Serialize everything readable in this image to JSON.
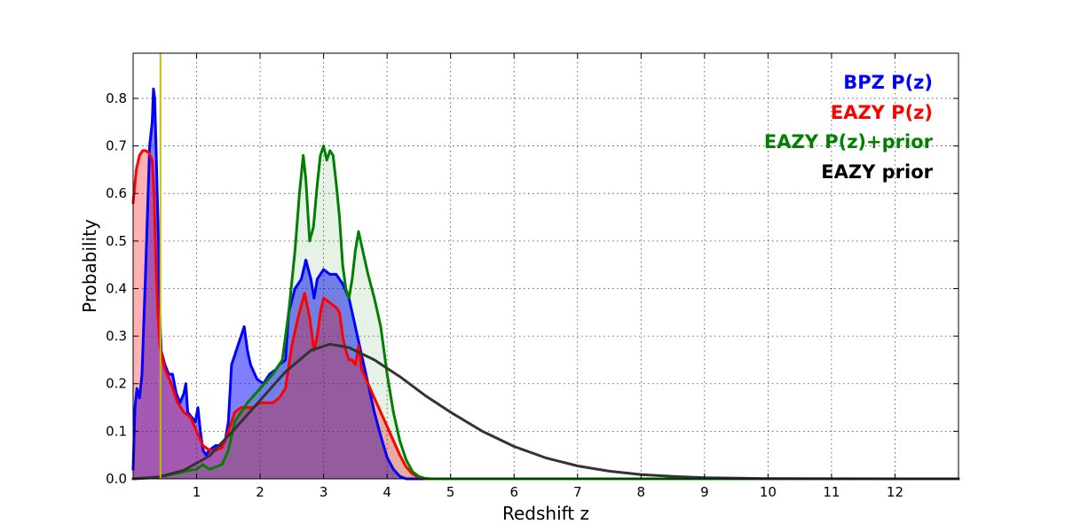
{
  "chart_data": {
    "type": "area",
    "xlabel": "Redshift z",
    "ylabel": "Probability",
    "xlim": [
      0,
      13
    ],
    "ylim": [
      0,
      0.895
    ],
    "grid": true,
    "legend_position": "top-right",
    "x_ticks": [
      1,
      2,
      3,
      4,
      5,
      6,
      7,
      8,
      9,
      10,
      11,
      12
    ],
    "x_tick_labels": [
      "1",
      "2",
      "3",
      "4",
      "5",
      "6",
      "7",
      "8",
      "9",
      "10",
      "11",
      "12"
    ],
    "y_ticks": [
      0.0,
      0.1,
      0.2,
      0.3,
      0.4,
      0.5,
      0.6,
      0.7,
      0.8
    ],
    "y_tick_labels": [
      "0.0",
      "0.1",
      "0.2",
      "0.3",
      "0.4",
      "0.5",
      "0.6",
      "0.7",
      "0.8"
    ],
    "vline": {
      "x": 0.43,
      "color": "#bfbf00"
    },
    "series": [
      {
        "name": "BPZ P(z)",
        "color": "#0000ff",
        "fill_opacity": 0.5,
        "points": [
          [
            0,
            0.02
          ],
          [
            0.03,
            0.15
          ],
          [
            0.06,
            0.19
          ],
          [
            0.1,
            0.17
          ],
          [
            0.14,
            0.22
          ],
          [
            0.2,
            0.45
          ],
          [
            0.26,
            0.7
          ],
          [
            0.3,
            0.75
          ],
          [
            0.32,
            0.82
          ],
          [
            0.34,
            0.8
          ],
          [
            0.36,
            0.7
          ],
          [
            0.38,
            0.6
          ],
          [
            0.4,
            0.5
          ],
          [
            0.42,
            0.35
          ],
          [
            0.44,
            0.27
          ],
          [
            0.5,
            0.24
          ],
          [
            0.56,
            0.22
          ],
          [
            0.62,
            0.22
          ],
          [
            0.68,
            0.18
          ],
          [
            0.74,
            0.16
          ],
          [
            0.8,
            0.18
          ],
          [
            0.83,
            0.2
          ],
          [
            0.86,
            0.14
          ],
          [
            0.92,
            0.13
          ],
          [
            0.98,
            0.12
          ],
          [
            1.02,
            0.15
          ],
          [
            1.06,
            0.1
          ],
          [
            1.1,
            0.06
          ],
          [
            1.15,
            0.05
          ],
          [
            1.2,
            0.06
          ],
          [
            1.3,
            0.07
          ],
          [
            1.4,
            0.07
          ],
          [
            1.45,
            0.08
          ],
          [
            1.5,
            0.12
          ],
          [
            1.55,
            0.24
          ],
          [
            1.6,
            0.26
          ],
          [
            1.65,
            0.28
          ],
          [
            1.7,
            0.3
          ],
          [
            1.75,
            0.32
          ],
          [
            1.8,
            0.27
          ],
          [
            1.85,
            0.24
          ],
          [
            1.95,
            0.21
          ],
          [
            2.05,
            0.2
          ],
          [
            2.15,
            0.22
          ],
          [
            2.25,
            0.23
          ],
          [
            2.3,
            0.24
          ],
          [
            2.4,
            0.25
          ],
          [
            2.45,
            0.35
          ],
          [
            2.55,
            0.4
          ],
          [
            2.65,
            0.42
          ],
          [
            2.72,
            0.46
          ],
          [
            2.8,
            0.42
          ],
          [
            2.85,
            0.38
          ],
          [
            2.9,
            0.42
          ],
          [
            2.95,
            0.43
          ],
          [
            3.0,
            0.44
          ],
          [
            3.1,
            0.43
          ],
          [
            3.2,
            0.43
          ],
          [
            3.3,
            0.41
          ],
          [
            3.4,
            0.38
          ],
          [
            3.5,
            0.32
          ],
          [
            3.6,
            0.26
          ],
          [
            3.7,
            0.2
          ],
          [
            3.8,
            0.14
          ],
          [
            3.9,
            0.09
          ],
          [
            4.0,
            0.045
          ],
          [
            4.1,
            0.02
          ],
          [
            4.2,
            0.005
          ],
          [
            4.3,
            0.0
          ],
          [
            5,
            0
          ],
          [
            13,
            0
          ]
        ]
      },
      {
        "name": "EAZY P(z)",
        "color": "#ff0000",
        "fill_opacity": 0.3,
        "points": [
          [
            0,
            0.58
          ],
          [
            0.05,
            0.65
          ],
          [
            0.1,
            0.68
          ],
          [
            0.15,
            0.69
          ],
          [
            0.2,
            0.69
          ],
          [
            0.25,
            0.685
          ],
          [
            0.3,
            0.67
          ],
          [
            0.33,
            0.6
          ],
          [
            0.36,
            0.45
          ],
          [
            0.39,
            0.35
          ],
          [
            0.42,
            0.28
          ],
          [
            0.5,
            0.23
          ],
          [
            0.6,
            0.2
          ],
          [
            0.7,
            0.16
          ],
          [
            0.8,
            0.14
          ],
          [
            0.9,
            0.13
          ],
          [
            1.0,
            0.1
          ],
          [
            1.1,
            0.07
          ],
          [
            1.2,
            0.06
          ],
          [
            1.3,
            0.06
          ],
          [
            1.4,
            0.065
          ],
          [
            1.5,
            0.1
          ],
          [
            1.6,
            0.14
          ],
          [
            1.7,
            0.15
          ],
          [
            1.8,
            0.15
          ],
          [
            1.9,
            0.15
          ],
          [
            2.0,
            0.16
          ],
          [
            2.1,
            0.16
          ],
          [
            2.2,
            0.16
          ],
          [
            2.3,
            0.17
          ],
          [
            2.4,
            0.19
          ],
          [
            2.5,
            0.28
          ],
          [
            2.6,
            0.34
          ],
          [
            2.7,
            0.39
          ],
          [
            2.78,
            0.34
          ],
          [
            2.85,
            0.27
          ],
          [
            2.9,
            0.3
          ],
          [
            2.95,
            0.35
          ],
          [
            3.0,
            0.38
          ],
          [
            3.1,
            0.37
          ],
          [
            3.2,
            0.36
          ],
          [
            3.25,
            0.35
          ],
          [
            3.3,
            0.3
          ],
          [
            3.35,
            0.27
          ],
          [
            3.4,
            0.25
          ],
          [
            3.45,
            0.25
          ],
          [
            3.5,
            0.24
          ],
          [
            3.55,
            0.28
          ],
          [
            3.6,
            0.23
          ],
          [
            3.7,
            0.2
          ],
          [
            3.8,
            0.17
          ],
          [
            3.9,
            0.14
          ],
          [
            4.0,
            0.11
          ],
          [
            4.1,
            0.08
          ],
          [
            4.2,
            0.05
          ],
          [
            4.3,
            0.025
          ],
          [
            4.4,
            0.01
          ],
          [
            4.5,
            0.003
          ],
          [
            4.6,
            0
          ],
          [
            13,
            0
          ]
        ]
      },
      {
        "name": "EAZY P(z)+prior",
        "color": "#007f00",
        "fill_opacity": 0.1,
        "points": [
          [
            0,
            0
          ],
          [
            0.3,
            0.002
          ],
          [
            0.5,
            0.006
          ],
          [
            0.7,
            0.012
          ],
          [
            0.9,
            0.018
          ],
          [
            1.0,
            0.02
          ],
          [
            1.1,
            0.03
          ],
          [
            1.2,
            0.02
          ],
          [
            1.3,
            0.025
          ],
          [
            1.4,
            0.03
          ],
          [
            1.5,
            0.06
          ],
          [
            1.6,
            0.12
          ],
          [
            1.8,
            0.16
          ],
          [
            2.0,
            0.19
          ],
          [
            2.2,
            0.22
          ],
          [
            2.35,
            0.25
          ],
          [
            2.45,
            0.35
          ],
          [
            2.55,
            0.48
          ],
          [
            2.62,
            0.6
          ],
          [
            2.68,
            0.68
          ],
          [
            2.72,
            0.63
          ],
          [
            2.78,
            0.5
          ],
          [
            2.84,
            0.53
          ],
          [
            2.9,
            0.62
          ],
          [
            2.95,
            0.68
          ],
          [
            3.0,
            0.7
          ],
          [
            3.05,
            0.67
          ],
          [
            3.1,
            0.69
          ],
          [
            3.15,
            0.68
          ],
          [
            3.2,
            0.62
          ],
          [
            3.25,
            0.55
          ],
          [
            3.3,
            0.45
          ],
          [
            3.35,
            0.4
          ],
          [
            3.4,
            0.38
          ],
          [
            3.45,
            0.42
          ],
          [
            3.5,
            0.48
          ],
          [
            3.55,
            0.52
          ],
          [
            3.6,
            0.49
          ],
          [
            3.65,
            0.46
          ],
          [
            3.7,
            0.43
          ],
          [
            3.8,
            0.38
          ],
          [
            3.9,
            0.32
          ],
          [
            4.0,
            0.22
          ],
          [
            4.1,
            0.14
          ],
          [
            4.2,
            0.08
          ],
          [
            4.3,
            0.04
          ],
          [
            4.4,
            0.015
          ],
          [
            4.5,
            0.005
          ],
          [
            4.6,
            0.001
          ],
          [
            4.7,
            0
          ],
          [
            13,
            0
          ]
        ]
      },
      {
        "name": "EAZY prior",
        "color": "#333333",
        "fill_opacity": 0,
        "points": [
          [
            0,
            0
          ],
          [
            0.4,
            0.004
          ],
          [
            0.8,
            0.018
          ],
          [
            1.2,
            0.048
          ],
          [
            1.6,
            0.105
          ],
          [
            2.0,
            0.165
          ],
          [
            2.4,
            0.225
          ],
          [
            2.8,
            0.27
          ],
          [
            3.1,
            0.283
          ],
          [
            3.4,
            0.276
          ],
          [
            3.8,
            0.25
          ],
          [
            4.2,
            0.215
          ],
          [
            4.6,
            0.175
          ],
          [
            5.0,
            0.14
          ],
          [
            5.5,
            0.1
          ],
          [
            6.0,
            0.068
          ],
          [
            6.5,
            0.044
          ],
          [
            7.0,
            0.027
          ],
          [
            7.5,
            0.016
          ],
          [
            8.0,
            0.009
          ],
          [
            8.5,
            0.005
          ],
          [
            9.0,
            0.0025
          ],
          [
            10.0,
            0.0005
          ],
          [
            11.0,
            0.0001
          ],
          [
            12.0,
            0
          ],
          [
            13,
            0
          ]
        ]
      }
    ],
    "legend": [
      {
        "label": "BPZ P(z)",
        "color": "#0000ff"
      },
      {
        "label": "EAZY P(z)",
        "color": "#ff0000"
      },
      {
        "label": "EAZY P(z)+prior",
        "color": "#007f00"
      },
      {
        "label": "EAZY prior",
        "color": "#000000"
      }
    ]
  }
}
